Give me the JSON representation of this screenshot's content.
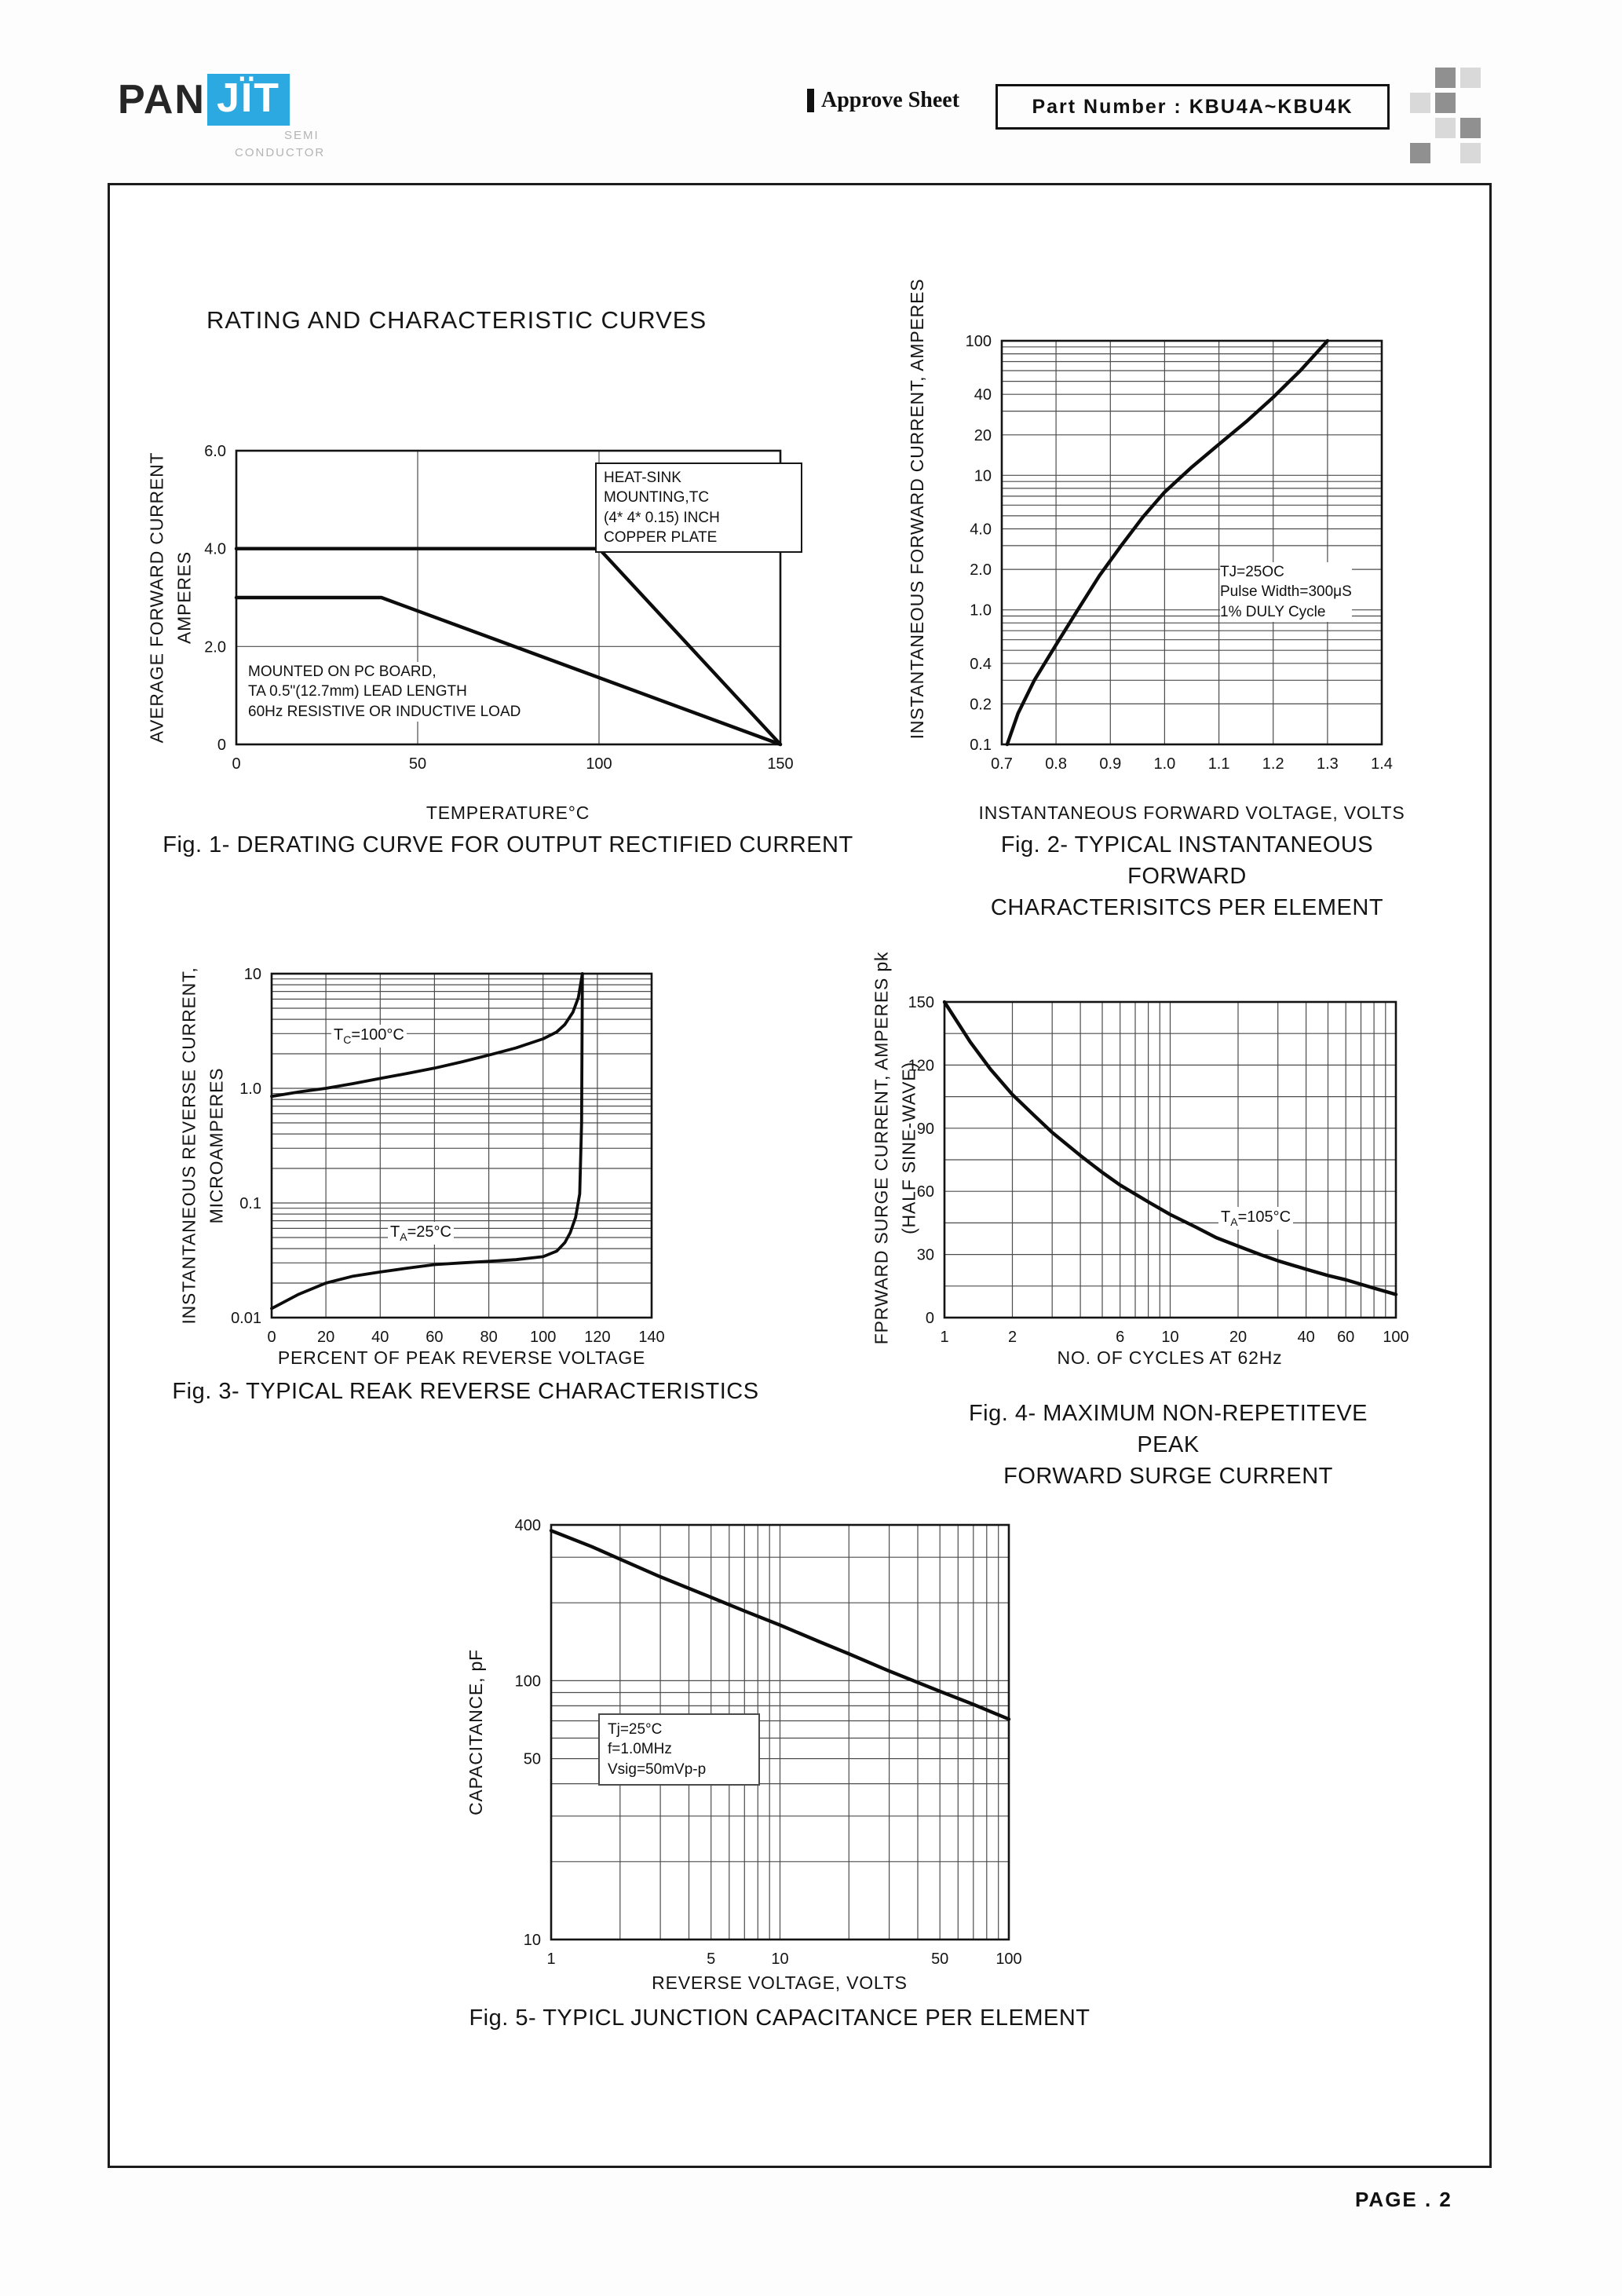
{
  "page": {
    "title": "RATING AND CHARACTERISTIC CURVES",
    "footer": "PAGE . 2"
  },
  "header": {
    "logo": {
      "pan": "PAN",
      "jit": "JÏT",
      "semi": "SEMI",
      "conductor": "CONDUCTOR",
      "blue": "#2ba9e0"
    },
    "approve_sheet": "Approve Sheet",
    "part_number": "Part Number : KBU4A~KBU4K"
  },
  "chart_data": [
    {
      "id": "fig1",
      "type": "line",
      "caption": "Fig. 1- DERATING CURVE FOR OUTPUT RECTIFIED CURRENT",
      "xlabel": "TEMPERATURE°C",
      "ylabel": "AVERAGE FORWARD CURRENT\nAMPERES",
      "x_axis": {
        "scale": "linear",
        "min": 0,
        "max": 150,
        "tick_values": [
          0,
          50,
          100,
          150
        ],
        "tick_labels": [
          "0",
          "50",
          "100",
          "150"
        ],
        "grid": "ticks"
      },
      "y_axis": {
        "scale": "linear",
        "min": 0,
        "max": 6,
        "tick_values": [
          0,
          2,
          4,
          6
        ],
        "tick_labels": [
          "0",
          "2.0",
          "4.0",
          "6.0"
        ],
        "grid": "ticks"
      },
      "series": [
        {
          "name": "heat-sink mounting",
          "points": [
            [
              0,
              4
            ],
            [
              100,
              4
            ],
            [
              150,
              0
            ]
          ]
        },
        {
          "name": "pc board mounting",
          "points": [
            [
              0,
              3
            ],
            [
              40,
              3
            ],
            [
              150,
              0
            ]
          ]
        }
      ],
      "annotations": [
        {
          "text": "HEAT-SINK\nMOUNTING,TC\n(4* 4* 0.15) INCH\nCOPPER PLATE"
        },
        {
          "text": "MOUNTED ON PC BOARD,\nTA 0.5\"(12.7mm) LEAD LENGTH\n60Hz RESISTIVE OR INDUCTIVE LOAD"
        }
      ]
    },
    {
      "id": "fig2",
      "type": "line",
      "caption": "Fig. 2- TYPICAL INSTANTANEOUS FORWARD\nCHARACTERISITCS PER ELEMENT",
      "xlabel": "INSTANTANEOUS FORWARD VOLTAGE, VOLTS",
      "ylabel": "INSTANTANEOUS FORWARD CURRENT, AMPERES",
      "x_axis": {
        "scale": "linear",
        "min": 0.7,
        "max": 1.4,
        "tick_values": [
          0.7,
          0.8,
          0.9,
          1.0,
          1.1,
          1.2,
          1.3,
          1.4
        ],
        "tick_labels": [
          "0.7",
          "0.8",
          "0.9",
          "1.0",
          "1.1",
          "1.2",
          "1.3",
          "1.4"
        ],
        "grid": "ticks"
      },
      "y_axis": {
        "scale": "log",
        "min": 0.1,
        "max": 100,
        "tick_values": [
          100,
          40,
          20,
          10,
          4,
          2,
          1,
          0.4,
          0.2,
          0.1
        ],
        "tick_labels": [
          "100",
          "40",
          "20",
          "10",
          "4.0",
          "2.0",
          "1.0",
          "0.4",
          "0.2",
          "0.1"
        ],
        "grid": "log-minor"
      },
      "series": [
        {
          "name": "forward characteristic",
          "points": [
            [
              0.71,
              0.1
            ],
            [
              0.73,
              0.17
            ],
            [
              0.76,
              0.3
            ],
            [
              0.8,
              0.55
            ],
            [
              0.84,
              1.0
            ],
            [
              0.88,
              1.8
            ],
            [
              0.92,
              3.0
            ],
            [
              0.96,
              4.9
            ],
            [
              1.0,
              7.5
            ],
            [
              1.05,
              11.5
            ],
            [
              1.1,
              17
            ],
            [
              1.15,
              25
            ],
            [
              1.2,
              38
            ],
            [
              1.25,
              60
            ],
            [
              1.3,
              100
            ]
          ]
        }
      ],
      "annotations": [
        {
          "text": "TJ=25OC\nPulse Width=300μS\n1% DULY Cycle"
        }
      ]
    },
    {
      "id": "fig3",
      "type": "line",
      "caption": "Fig. 3- TYPICAL REAK REVERSE CHARACTERISTICS",
      "xlabel": "PERCENT OF PEAK REVERSE VOLTAGE",
      "ylabel": "INSTANTANEOUS REVERSE CURRENT,\nMICROAMPERES",
      "x_axis": {
        "scale": "linear",
        "min": 0,
        "max": 140,
        "tick_values": [
          0,
          20,
          40,
          60,
          80,
          100,
          120,
          140
        ],
        "tick_labels": [
          "0",
          "20",
          "40",
          "60",
          "80",
          "100",
          "120",
          "140"
        ],
        "grid": "ticks"
      },
      "y_axis": {
        "scale": "log",
        "min": 0.01,
        "max": 10,
        "tick_values": [
          10,
          1,
          0.1,
          0.01
        ],
        "tick_labels": [
          "10",
          "1.0",
          "0.1",
          "0.01"
        ],
        "grid": "log-minor"
      },
      "series": [
        {
          "name": "TC=100C",
          "width": 3.8,
          "points": [
            [
              0,
              0.85
            ],
            [
              10,
              0.93
            ],
            [
              20,
              1.0
            ],
            [
              30,
              1.1
            ],
            [
              40,
              1.22
            ],
            [
              50,
              1.35
            ],
            [
              60,
              1.5
            ],
            [
              70,
              1.7
            ],
            [
              80,
              1.95
            ],
            [
              90,
              2.25
            ],
            [
              100,
              2.7
            ],
            [
              105,
              3.1
            ],
            [
              108,
              3.6
            ],
            [
              111,
              4.6
            ],
            [
              113,
              6.2
            ],
            [
              114.5,
              10
            ]
          ]
        },
        {
          "name": "TA=25C",
          "width": 3.8,
          "points": [
            [
              0,
              0.012
            ],
            [
              10,
              0.016
            ],
            [
              20,
              0.02
            ],
            [
              30,
              0.023
            ],
            [
              40,
              0.025
            ],
            [
              50,
              0.027
            ],
            [
              60,
              0.029
            ],
            [
              70,
              0.03
            ],
            [
              80,
              0.031
            ],
            [
              90,
              0.032
            ],
            [
              100,
              0.034
            ],
            [
              105,
              0.038
            ],
            [
              108,
              0.045
            ],
            [
              110,
              0.055
            ],
            [
              112,
              0.075
            ],
            [
              113.5,
              0.12
            ],
            [
              114.2,
              0.5
            ],
            [
              114.5,
              10
            ]
          ]
        }
      ],
      "annotations": [
        {
          "runs": [
            {
              "t": "T"
            },
            {
              "t": "C",
              "sub": true
            },
            {
              "t": "=100°C"
            }
          ]
        },
        {
          "runs": [
            {
              "t": "T"
            },
            {
              "t": "A",
              "sub": true
            },
            {
              "t": "=25°C"
            }
          ]
        }
      ]
    },
    {
      "id": "fig4",
      "type": "line",
      "caption": "Fig. 4- MAXIMUM NON-REPETITEVE PEAK\nFORWARD SURGE CURRENT",
      "xlabel": "NO. OF CYCLES AT 62Hz",
      "ylabel": "FPRWARD SURGE CURRENT, AMPERES pk\n(HALF SINE-WAVE)",
      "x_axis": {
        "scale": "log",
        "min": 1,
        "max": 100,
        "tick_values": [
          1,
          2,
          6,
          10,
          20,
          40,
          60,
          100
        ],
        "tick_labels": [
          "1",
          "2",
          "6",
          "10",
          "20",
          "40",
          "60",
          "100"
        ],
        "grid": "log-minor"
      },
      "y_axis": {
        "scale": "linear",
        "min": 0,
        "max": 150,
        "tick_values": [
          0,
          30,
          60,
          90,
          120,
          150
        ],
        "tick_labels": [
          "0",
          "30",
          "60",
          "90",
          "120",
          "150"
        ],
        "grid": "ticks",
        "grid_values": [
          15,
          30,
          45,
          60,
          75,
          90,
          105,
          120,
          135
        ]
      },
      "series": [
        {
          "name": "surge current",
          "points": [
            [
              1,
              150
            ],
            [
              1.3,
              131
            ],
            [
              1.6,
              118
            ],
            [
              2,
              106
            ],
            [
              2.5,
              96
            ],
            [
              3,
              88
            ],
            [
              4,
              77
            ],
            [
              5,
              69
            ],
            [
              6,
              63
            ],
            [
              8,
              55
            ],
            [
              10,
              49
            ],
            [
              13,
              43
            ],
            [
              16,
              38
            ],
            [
              20,
              34
            ],
            [
              25,
              30
            ],
            [
              30,
              27
            ],
            [
              40,
              23
            ],
            [
              50,
              20
            ],
            [
              60,
              18
            ],
            [
              80,
              14
            ],
            [
              100,
              11
            ]
          ]
        }
      ],
      "annotations": [
        {
          "runs": [
            {
              "t": "T"
            },
            {
              "t": "A",
              "sub": true
            },
            {
              "t": "=105°C"
            }
          ]
        }
      ]
    },
    {
      "id": "fig5",
      "type": "line",
      "caption": "Fig. 5- TYPICL JUNCTION CAPACITANCE PER ELEMENT",
      "xlabel": "REVERSE VOLTAGE, VOLTS",
      "ylabel": "CAPACITANCE, pF",
      "x_axis": {
        "scale": "log",
        "min": 1,
        "max": 100,
        "tick_values": [
          1,
          5,
          10,
          50,
          100
        ],
        "tick_labels": [
          "1",
          "5",
          "10",
          "50",
          "100"
        ],
        "grid": "log-minor"
      },
      "y_axis": {
        "scale": "log",
        "min": 10,
        "max": 400,
        "tick_values": [
          400,
          100,
          50,
          10
        ],
        "tick_labels": [
          "400",
          "100",
          "50",
          "10"
        ],
        "grid": "log-minor"
      },
      "series": [
        {
          "name": "junction capacitance",
          "points": [
            [
              1,
              380
            ],
            [
              1.5,
              330
            ],
            [
              2,
              295
            ],
            [
              3,
              252
            ],
            [
              5,
              210
            ],
            [
              7,
              186
            ],
            [
              10,
              164
            ],
            [
              15,
              141
            ],
            [
              20,
              127
            ],
            [
              30,
              109
            ],
            [
              50,
              91
            ],
            [
              70,
              81
            ],
            [
              100,
              71
            ]
          ]
        }
      ],
      "annotations": [
        {
          "text": "Tj=25°C\nf=1.0MHz\nVsig=50mVp-p"
        }
      ]
    }
  ]
}
